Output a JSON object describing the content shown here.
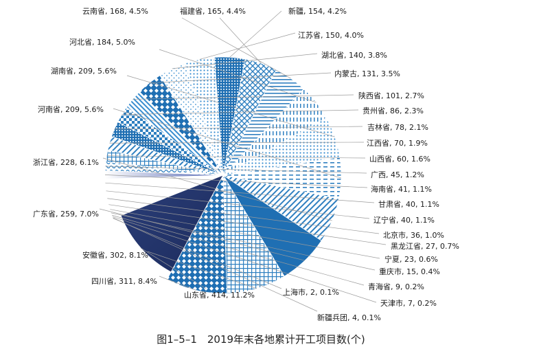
{
  "chart_data": {
    "type": "pie",
    "caption": "图1–5–1　2019年末各地累计开工项目数(个)",
    "unit": "个",
    "slices": [
      {
        "label": "上海市",
        "value": 2,
        "percent": "0.1%"
      },
      {
        "label": "新疆兵团",
        "value": 4,
        "percent": "0.1%"
      },
      {
        "label": "天津市",
        "value": 7,
        "percent": "0.2%"
      },
      {
        "label": "青海省",
        "value": 9,
        "percent": "0.2%"
      },
      {
        "label": "重庆市",
        "value": 15,
        "percent": "0.4%"
      },
      {
        "label": "宁夏",
        "value": 23,
        "percent": "0.6%"
      },
      {
        "label": "黑龙江省",
        "value": 27,
        "percent": "0.7%"
      },
      {
        "label": "北京市",
        "value": 36,
        "percent": "1.0%"
      },
      {
        "label": "辽宁省",
        "value": 40,
        "percent": "1.1%"
      },
      {
        "label": "甘肃省",
        "value": 40,
        "percent": "1.1%"
      },
      {
        "label": "海南省",
        "value": 41,
        "percent": "1.1%"
      },
      {
        "label": "广西",
        "value": 45,
        "percent": "1.2%"
      },
      {
        "label": "山西省",
        "value": 60,
        "percent": "1.6%"
      },
      {
        "label": "江西省",
        "value": 70,
        "percent": "1.9%"
      },
      {
        "label": "吉林省",
        "value": 78,
        "percent": "2.1%"
      },
      {
        "label": "贵州省",
        "value": 86,
        "percent": "2.3%"
      },
      {
        "label": "陕西省",
        "value": 101,
        "percent": "2.7%"
      },
      {
        "label": "内蒙古",
        "value": 131,
        "percent": "3.5%"
      },
      {
        "label": "湖北省",
        "value": 140,
        "percent": "3.8%"
      },
      {
        "label": "江苏省",
        "value": 150,
        "percent": "4.0%"
      },
      {
        "label": "新疆",
        "value": 154,
        "percent": "4.2%"
      },
      {
        "label": "福建省",
        "value": 165,
        "percent": "4.4%"
      },
      {
        "label": "云南省",
        "value": 168,
        "percent": "4.5%"
      },
      {
        "label": "河北省",
        "value": 184,
        "percent": "5.0%"
      },
      {
        "label": "湖南省",
        "value": 209,
        "percent": "5.6%"
      },
      {
        "label": "河南省",
        "value": 209,
        "percent": "5.6%"
      },
      {
        "label": "浙江省",
        "value": 228,
        "percent": "6.1%"
      },
      {
        "label": "广东省",
        "value": 259,
        "percent": "7.0%"
      },
      {
        "label": "安徽省",
        "value": 302,
        "percent": "8.1%"
      },
      {
        "label": "四川省",
        "value": 311,
        "percent": "8.4%"
      },
      {
        "label": "山东省",
        "value": 414,
        "percent": "11.2%"
      }
    ]
  }
}
